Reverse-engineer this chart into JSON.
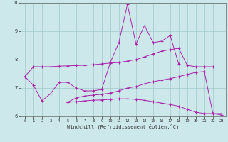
{
  "xlabel": "Windchill (Refroidissement éolien,°C)",
  "hours": [
    0,
    1,
    2,
    3,
    4,
    5,
    6,
    7,
    8,
    9,
    10,
    11,
    12,
    13,
    14,
    15,
    16,
    17,
    18,
    19,
    20,
    21,
    22,
    23
  ],
  "line1": [
    7.4,
    7.75,
    7.75,
    7.75,
    7.77,
    7.78,
    7.79,
    7.8,
    7.82,
    7.85,
    7.88,
    7.9,
    7.95,
    8.0,
    8.1,
    8.2,
    8.3,
    8.35,
    8.4,
    7.8,
    7.75,
    7.75,
    7.75,
    null
  ],
  "line2": [
    7.4,
    7.1,
    6.55,
    6.8,
    7.2,
    7.2,
    7.0,
    6.9,
    6.9,
    6.95,
    7.9,
    8.6,
    9.95,
    8.55,
    9.2,
    8.6,
    8.65,
    8.85,
    7.85,
    null,
    null,
    null,
    null,
    null
  ],
  "line3": [
    null,
    null,
    null,
    null,
    null,
    6.5,
    6.65,
    6.72,
    6.75,
    6.78,
    6.82,
    6.9,
    7.0,
    7.05,
    7.15,
    7.22,
    7.28,
    7.33,
    7.4,
    7.48,
    7.55,
    7.58,
    6.1,
    6.1
  ],
  "line4": [
    null,
    null,
    null,
    null,
    null,
    6.5,
    6.52,
    6.55,
    6.57,
    6.58,
    6.6,
    6.62,
    6.62,
    6.6,
    6.57,
    6.52,
    6.47,
    6.42,
    6.36,
    6.25,
    6.15,
    6.1,
    6.1,
    6.05
  ],
  "bg_color": "#cde8ea",
  "grid_color": "#a0c8cc",
  "line_color": "#aa22aa",
  "ylim": [
    6.0,
    10.0
  ],
  "xlim": [
    -0.5,
    23.5
  ],
  "yticks": [
    6,
    7,
    8,
    9,
    10
  ],
  "xticks": [
    0,
    1,
    2,
    3,
    4,
    5,
    6,
    7,
    8,
    9,
    10,
    11,
    12,
    13,
    14,
    15,
    16,
    17,
    18,
    19,
    20,
    21,
    22,
    23
  ]
}
